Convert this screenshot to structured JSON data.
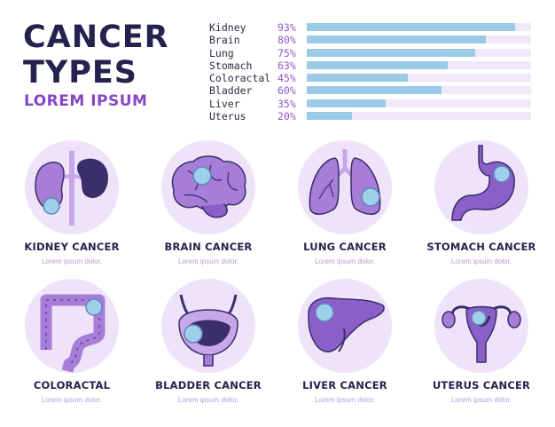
{
  "header": {
    "title_line1": "CANCER",
    "title_line2": "TYPES",
    "subtitle": "LOREM IPSUM"
  },
  "stats": [
    {
      "name": "Kidney",
      "percent": "93%",
      "value": 93
    },
    {
      "name": "Brain",
      "percent": "80%",
      "value": 80
    },
    {
      "name": "Lung",
      "percent": "75%",
      "value": 75
    },
    {
      "name": "Stomach",
      "percent": "63%",
      "value": 63
    },
    {
      "name": "Coloractal",
      "percent": "45%",
      "value": 45
    },
    {
      "name": "Bladder",
      "percent": "60%",
      "value": 60
    },
    {
      "name": "Liver",
      "percent": "35%",
      "value": 35
    },
    {
      "name": "Uterus",
      "percent": "20%",
      "value": 20
    }
  ],
  "cards": [
    {
      "name": "KIDNEY CANCER",
      "desc": "Lorem ipsum dolor.",
      "icon": "kidney-icon"
    },
    {
      "name": "BRAIN CANCER",
      "desc": "Lorem ipsum dolor.",
      "icon": "brain-icon"
    },
    {
      "name": "LUNG CANCER",
      "desc": "Lorem ipsum dolor.",
      "icon": "lungs-icon"
    },
    {
      "name": "STOMACH CANCER",
      "desc": "Lorem ipsum dolor.",
      "icon": "stomach-icon"
    },
    {
      "name": "COLORACTAL",
      "desc": "Lorem ipsum dolor.",
      "icon": "colon-icon"
    },
    {
      "name": "BLADDER CANCER",
      "desc": "Lorem ipsum dolor.",
      "icon": "bladder-icon"
    },
    {
      "name": "LIVER CANCER",
      "desc": "Lorem ipsum dolor.",
      "icon": "liver-icon"
    },
    {
      "name": "UTERUS CANCER",
      "desc": "Lorem ipsum dolor.",
      "icon": "uterus-icon"
    }
  ],
  "colors": {
    "navy": "#24224e",
    "purple": "#8447c4",
    "organ": "#a77dd8",
    "organ_dark": "#3a2e6b",
    "tumor": "#9fd0ea",
    "circle": "#efe3fa",
    "bar_fill": "#9bcae8",
    "bar_track": "#f2e8fa"
  }
}
